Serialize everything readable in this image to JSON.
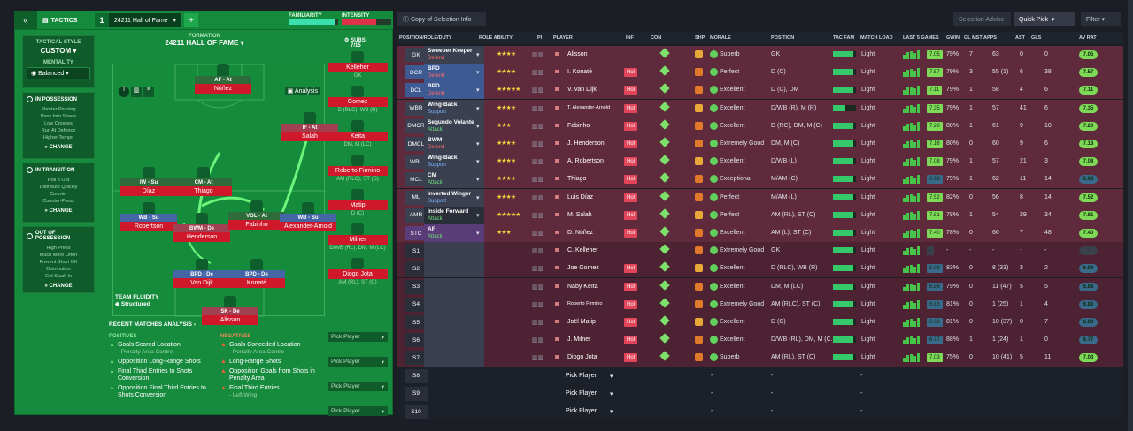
{
  "header": {
    "tactics_label": "TACTICS",
    "tactic_number": "1",
    "tactic_name": "24211 Hall of Fame",
    "familiarity_label": "FAMILIARITY",
    "intensity_label": "INTENSITY",
    "familiarity_value": 0.93,
    "intensity_value": 0.7
  },
  "sidebar": {
    "style_title": "TACTICAL STYLE",
    "style_value": "CUSTOM",
    "mentality_title": "MENTALITY",
    "mentality_value": "Balanced",
    "in_possession": {
      "title": "IN POSSESSION",
      "items": [
        "Shorter Passing",
        "Pass Into Space",
        "Low Crosses",
        "Run At Defence",
        "Higher Tempo"
      ],
      "change": "CHANGE"
    },
    "in_transition": {
      "title": "IN TRANSITION",
      "items": [
        "Roll It Out",
        "Distribute Quickly",
        "Counter",
        "Counter-Press"
      ],
      "change": "CHANGE"
    },
    "out_of_possession": {
      "title": "OUT OF POSSESSION",
      "items": [
        "High Press",
        "Much More Often",
        "Prevent Short GK",
        "Distribution",
        "Get Stuck In"
      ],
      "change": "CHANGE"
    }
  },
  "formation": {
    "title": "FORMATION",
    "name": "24211 HALL OF FAME",
    "analysis": "Analysis",
    "subs_label": "SUBS:",
    "subs_count": "7/15",
    "fluidity_title": "TEAM FLUIDITY",
    "fluidity_value": "Structured"
  },
  "pitch_players": [
    {
      "role": "AF - At",
      "name": "Núñez"
    },
    {
      "role": "IF - At",
      "name": "Salah"
    },
    {
      "role": "IW - Su",
      "name": "Díaz"
    },
    {
      "role": "CM - At",
      "name": "Thiago"
    },
    {
      "role": "WB - Su",
      "name": "Robertson"
    },
    {
      "role": "BWM - De",
      "name": "Henderson"
    },
    {
      "role": "VOL - At",
      "name": "Fabinho"
    },
    {
      "role": "WB - Su",
      "name": "Alexander-Arnold"
    },
    {
      "role": "BPD - De",
      "name": "Van Dijk"
    },
    {
      "role": "BPD - De",
      "name": "Konaté"
    },
    {
      "role": "SK - De",
      "name": "Alisson"
    }
  ],
  "subs": [
    {
      "name": "Kelleher",
      "pos": "GK"
    },
    {
      "name": "Gomez",
      "pos": "D (RLC), WB (R)"
    },
    {
      "name": "Keita",
      "pos": "DM, M (LC)"
    },
    {
      "name": "Roberto Firmino",
      "pos": "AM (RLC), ST (C)"
    },
    {
      "name": "Matip",
      "pos": "D (C)"
    },
    {
      "name": "Milner",
      "pos": "D/WB (RL), DM, M (LC)"
    },
    {
      "name": "Diogo Jota",
      "pos": "AM (RL), ST (C)"
    }
  ],
  "pick_player": "Pick Player",
  "recent": {
    "title": "RECENT MATCHES ANALYSIS",
    "positives_title": "POSITIVES",
    "negatives_title": "NEGATIVES",
    "positives": [
      {
        "text": "Goals Scored Location",
        "sub": "- Penalty Area Centre"
      },
      {
        "text": "Opposition Long-Range Shots",
        "sub": ""
      },
      {
        "text": "Final Third Entries to Shots Conversion",
        "sub": ""
      },
      {
        "text": "Opposition Final Third Entries to Shots Conversion",
        "sub": ""
      }
    ],
    "negatives": [
      {
        "text": "Goals Conceded Location",
        "sub": "- Penalty Area Centre"
      },
      {
        "text": "Long-Range Shots",
        "sub": ""
      },
      {
        "text": "Opposition Goals from Shots in Penalty Area",
        "sub": ""
      },
      {
        "text": "Final Third Entries",
        "sub": "- Left Wing"
      }
    ]
  },
  "toolbar": {
    "copy_info": "Copy of Selection Info",
    "selection_advice": "Selection Advice",
    "quick_pick": "Quick Pick",
    "filter": "Filter"
  },
  "columns": [
    "POSITION/ROLE/DUTY",
    "ROLE ABILITY",
    "PI",
    "PLAYER",
    "INF",
    "CON",
    "SHP",
    "MORALE",
    "POSITION",
    "TAC FAM",
    "MATCH LOAD",
    "LAST 5 GAMES",
    "GWIN",
    "GL MST",
    "APPS",
    "AST",
    "GLS",
    "AV RAT"
  ],
  "rows": [
    {
      "pos": "GK",
      "role": "Sweeper Keeper",
      "duty": "Defend",
      "stars": "★★★★",
      "player": "Alisson",
      "inf": "",
      "morale": "Superb",
      "position": "GK",
      "load": "Light",
      "gwin": "79%",
      "glmst": "7",
      "apps": "63",
      "ast": "0",
      "gls": "0",
      "rating": "7.05"
    },
    {
      "pos": "DCR",
      "role": "BPD",
      "duty": "Defend",
      "stars": "★★★★",
      "player": "I. Konaté",
      "inf": "Hol",
      "morale": "Perfect",
      "position": "D (C)",
      "load": "Light",
      "gwin": "79%",
      "glmst": "3",
      "apps": "55 (1)",
      "ast": "6",
      "gls": "38",
      "rating": "7.57"
    },
    {
      "pos": "DCL",
      "role": "BPD",
      "duty": "Defend",
      "stars": "★★★★★",
      "player": "V. van Dijk",
      "inf": "Hol",
      "morale": "Excellent",
      "position": "D (C), DM",
      "load": "Light",
      "gwin": "79%",
      "glmst": "1",
      "apps": "58",
      "ast": "4",
      "gls": "6",
      "rating": "7.11"
    },
    {
      "pos": "WBR",
      "role": "Wing-Back",
      "duty": "Support",
      "stars": "★★★★",
      "player": "T. Alexander-Arnold",
      "inf": "Hol",
      "morale": "Excellent",
      "position": "D/WB (R), M (R)",
      "load": "Light",
      "gwin": "79%",
      "glmst": "1",
      "apps": "57",
      "ast": "41",
      "gls": "6",
      "rating": "7.35"
    },
    {
      "pos": "DMCR",
      "role": "Segundo Volante",
      "duty": "Attack",
      "stars": "★★★",
      "player": "Fabinho",
      "inf": "Hol",
      "morale": "Excellent",
      "position": "D (RC), DM, M (C)",
      "load": "Light",
      "gwin": "80%",
      "glmst": "1",
      "apps": "61",
      "ast": "9",
      "gls": "10",
      "rating": "7.20"
    },
    {
      "pos": "DMCL",
      "role": "BWM",
      "duty": "Defend",
      "stars": "★★★★",
      "player": "J. Henderson",
      "inf": "Hol",
      "morale": "Extremely Good",
      "position": "DM, M (C)",
      "load": "Light",
      "gwin": "80%",
      "glmst": "0",
      "apps": "60",
      "ast": "9",
      "gls": "6",
      "rating": "7.18"
    },
    {
      "pos": "WBL",
      "role": "Wing-Back",
      "duty": "Support",
      "stars": "★★★★",
      "player": "A. Robertson",
      "inf": "Hol",
      "morale": "Excellent",
      "position": "D/WB (L)",
      "load": "Light",
      "gwin": "79%",
      "glmst": "1",
      "apps": "57",
      "ast": "21",
      "gls": "3",
      "rating": "7.08"
    },
    {
      "pos": "MCL",
      "role": "CM",
      "duty": "Attack",
      "stars": "★★★★",
      "player": "Thiago",
      "inf": "Hol",
      "morale": "Exceptional",
      "position": "M/AM (C)",
      "load": "Light",
      "gwin": "79%",
      "glmst": "1",
      "apps": "62",
      "ast": "11",
      "gls": "14",
      "rating": "6.98"
    },
    {
      "pos": "ML",
      "role": "Inverted Winger",
      "duty": "Support",
      "stars": "★★★★",
      "player": "Luis Díaz",
      "inf": "Hol",
      "morale": "Perfect",
      "position": "M/AM (L)",
      "load": "Light",
      "gwin": "82%",
      "glmst": "0",
      "apps": "56",
      "ast": "8",
      "gls": "14",
      "rating": "7.52"
    },
    {
      "pos": "AMR",
      "role": "Inside Forward",
      "duty": "Attack",
      "stars": "★★★★★",
      "player": "M. Salah",
      "inf": "Hol",
      "morale": "Perfect",
      "position": "AM (RL), ST (C)",
      "load": "Light",
      "gwin": "78%",
      "glmst": "1",
      "apps": "54",
      "ast": "29",
      "gls": "34",
      "rating": "7.81"
    },
    {
      "pos": "STC",
      "role": "AF",
      "duty": "Attack",
      "stars": "★★★",
      "player": "D. Núñez",
      "inf": "Hol",
      "morale": "Excellent",
      "position": "AM (L), ST (C)",
      "load": "Light",
      "gwin": "78%",
      "glmst": "0",
      "apps": "60",
      "ast": "7",
      "gls": "48",
      "rating": "7.40"
    },
    {
      "pos": "S1",
      "role": "",
      "duty": "",
      "stars": "",
      "player": "C. Kelleher",
      "inf": "",
      "morale": "Extremely Good",
      "position": "GK",
      "load": "Light",
      "gwin": "-",
      "glmst": "-",
      "apps": "-",
      "ast": "-",
      "gls": "-",
      "rating": "-"
    },
    {
      "pos": "S2",
      "role": "",
      "duty": "",
      "stars": "",
      "player": "Joe Gomez",
      "inf": "Hol",
      "morale": "Excellent",
      "position": "D (RLC), WB (R)",
      "load": "Light",
      "gwin": "83%",
      "glmst": "0",
      "apps": "8 (33)",
      "ast": "3",
      "gls": "2",
      "rating": "6.99"
    },
    {
      "pos": "S3",
      "role": "",
      "duty": "",
      "stars": "",
      "player": "Naby Keïta",
      "inf": "Hol",
      "morale": "Excellent",
      "position": "DM, M (LC)",
      "load": "Light",
      "gwin": "79%",
      "glmst": "0",
      "apps": "11 (47)",
      "ast": "5",
      "gls": "5",
      "rating": "6.88"
    },
    {
      "pos": "S4",
      "role": "",
      "duty": "",
      "stars": "",
      "player": "Roberto Firmino",
      "inf": "Hol",
      "morale": "Extremely Good",
      "position": "AM (RLC), ST (C)",
      "load": "Light",
      "gwin": "81%",
      "glmst": "0",
      "apps": "1 (25)",
      "ast": "1",
      "gls": "4",
      "rating": "6.83"
    },
    {
      "pos": "S5",
      "role": "",
      "duty": "",
      "stars": "",
      "player": "Joël Matip",
      "inf": "Hol",
      "morale": "Excellent",
      "position": "D (C)",
      "load": "Light",
      "gwin": "81%",
      "glmst": "0",
      "apps": "10 (37)",
      "ast": "0",
      "gls": "7",
      "rating": "6.98"
    },
    {
      "pos": "S6",
      "role": "",
      "duty": "",
      "stars": "",
      "player": "J. Milner",
      "inf": "Hol",
      "morale": "Excellent",
      "position": "D/WB (RL), DM, M (C...",
      "load": "Light",
      "gwin": "88%",
      "glmst": "1",
      "apps": "1 (24)",
      "ast": "1",
      "gls": "0",
      "rating": "6.77"
    },
    {
      "pos": "S7",
      "role": "",
      "duty": "",
      "stars": "",
      "player": "Diogo Jota",
      "inf": "Hol",
      "morale": "Superb",
      "position": "AM (RL), ST (C)",
      "load": "Light",
      "gwin": "75%",
      "glmst": "0",
      "apps": "10 (41)",
      "ast": "5",
      "gls": "11",
      "rating": "7.03"
    },
    {
      "pos": "S8",
      "player": "Pick Player"
    },
    {
      "pos": "S9",
      "player": "Pick Player"
    },
    {
      "pos": "S10",
      "player": "Pick Player"
    }
  ],
  "colors": {
    "pitch": "#168a3d",
    "starter_row": "#5e2a3c",
    "accent_green": "#148a3c",
    "rating_green": "#7ed957"
  }
}
